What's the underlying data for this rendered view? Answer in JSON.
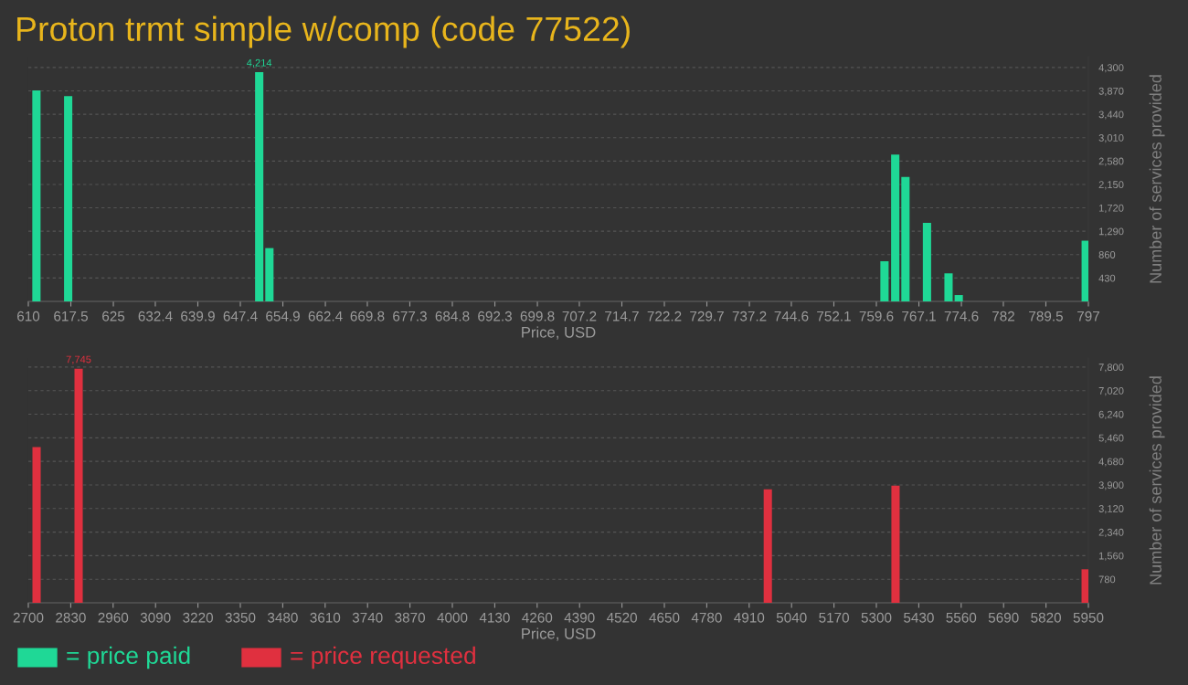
{
  "chart_data": [
    {
      "type": "bar",
      "title": "Proton trmt simple w/comp (code 77522)",
      "xlabel": "Price, USD",
      "ylabel": "Number of services provided",
      "x": [
        610.7,
        616.3,
        650.0,
        651.8,
        760.3,
        762.2,
        764.0,
        767.8,
        771.6,
        773.4,
        795.8
      ],
      "series": [
        {
          "name": "= price paid",
          "color": "#1fd896",
          "values": [
            3880,
            3775,
            4214,
            980,
            738,
            2700,
            2286,
            1443,
            516,
            117,
            1116
          ],
          "value_labels": [
            null,
            null,
            "4,214",
            null,
            null,
            null,
            null,
            null,
            null,
            null,
            null
          ]
        }
      ],
      "xlim": [
        610,
        797
      ],
      "xticks": [
        610,
        617.5,
        625,
        632.4,
        639.9,
        647.4,
        654.9,
        662.4,
        669.8,
        677.3,
        684.8,
        692.3,
        699.8,
        707.2,
        714.7,
        722.2,
        729.7,
        737.2,
        744.6,
        752.1,
        759.6,
        767.1,
        774.6,
        782,
        789.5,
        797
      ],
      "ylim": [
        0,
        4500
      ],
      "yticks": [
        {
          "value": 430,
          "label": "430"
        },
        {
          "value": 860,
          "label": "860"
        },
        {
          "value": 1290,
          "label": "1,290"
        },
        {
          "value": 1720,
          "label": "1,720"
        },
        {
          "value": 2150,
          "label": "2,150"
        },
        {
          "value": 2580,
          "label": "2,580"
        },
        {
          "value": 3010,
          "label": "3,010"
        },
        {
          "value": 3440,
          "label": "3,440"
        },
        {
          "value": 3870,
          "label": "3,870"
        },
        {
          "value": 4300,
          "label": "4,300"
        }
      ],
      "grid": "y",
      "legend": "bottom left"
    },
    {
      "type": "bar",
      "xlabel": "Price, USD",
      "ylabel": "Number of services provided",
      "x": [
        2712.6,
        2841.5,
        4954.5,
        5346,
        5929
      ],
      "series": [
        {
          "name": "= price requested",
          "color": "#e0303f",
          "values": [
            5152,
            7745,
            3757,
            3875,
            1109
          ],
          "value_labels": [
            null,
            "7,745",
            null,
            null,
            null
          ]
        }
      ],
      "xlim": [
        2700,
        5950
      ],
      "xticks": [
        2700,
        2830,
        2960,
        3090,
        3220,
        3350,
        3480,
        3610,
        3740,
        3870,
        4000,
        4130,
        4260,
        4390,
        4520,
        4650,
        4780,
        4910,
        5040,
        5170,
        5300,
        5430,
        5560,
        5690,
        5820,
        5950
      ],
      "ylim": [
        0,
        8100
      ],
      "yticks": [
        {
          "value": 780,
          "label": "780"
        },
        {
          "value": 1560,
          "label": "1,560"
        },
        {
          "value": 2340,
          "label": "2,340"
        },
        {
          "value": 3120,
          "label": "3,120"
        },
        {
          "value": 3900,
          "label": "3,900"
        },
        {
          "value": 4680,
          "label": "4,680"
        },
        {
          "value": 5460,
          "label": "5,460"
        },
        {
          "value": 6240,
          "label": "6,240"
        },
        {
          "value": 7020,
          "label": "7,020"
        },
        {
          "value": 7800,
          "label": "7,800"
        }
      ],
      "grid": "y",
      "legend": "bottom left"
    }
  ]
}
